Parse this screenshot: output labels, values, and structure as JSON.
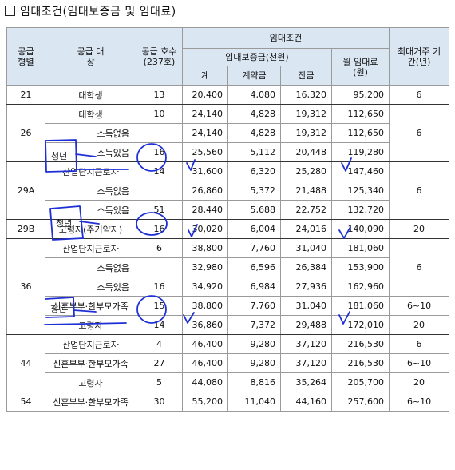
{
  "heading": "임대조건(임대보증금 및 임대료)",
  "headers": {
    "type": "공급 형별",
    "target": "공급 대상",
    "units": "공급 호수 (237호)",
    "rent_conditions": "임대조건",
    "deposit_group": "임대보증금(천원)",
    "total": "계",
    "contract": "계약금",
    "balance": "잔금",
    "monthly_rent": "월 임대료 (원)",
    "max_period": "최대거주 기간(년)"
  },
  "annot": {
    "youth": "청년"
  },
  "rows": [
    {
      "type": "21",
      "target": "대학생",
      "units": "13",
      "total": "20,400",
      "contract": "4,080",
      "balance": "16,320",
      "rent": "95,200",
      "period": "6"
    },
    {
      "type": "26",
      "target": "대학생",
      "units": "10",
      "total": "24,140",
      "contract": "4,828",
      "balance": "19,312",
      "rent": "112,650",
      "period": "6"
    },
    {
      "target": "청년",
      "sub": "소득없음",
      "total": "24,140",
      "contract": "4,828",
      "balance": "19,312",
      "rent": "112,650"
    },
    {
      "sub": "소득있음",
      "units": "16",
      "total": "25,560",
      "contract": "5,112",
      "balance": "20,448",
      "rent": "119,280"
    },
    {
      "type": "29A",
      "target": "산업단지근로자",
      "units": "14",
      "total": "31,600",
      "contract": "6,320",
      "balance": "25,280",
      "rent": "147,460",
      "period": "6"
    },
    {
      "target": "청년",
      "sub": "소득없음",
      "total": "26,860",
      "contract": "5,372",
      "balance": "21,488",
      "rent": "125,340"
    },
    {
      "sub": "소득있음",
      "units": "51",
      "total": "28,440",
      "contract": "5,688",
      "balance": "22,752",
      "rent": "132,720"
    },
    {
      "type": "29B",
      "target": "고령자(주거약자)",
      "units": "16",
      "total": "30,020",
      "contract": "6,004",
      "balance": "24,016",
      "rent": "140,090",
      "period": "20"
    },
    {
      "type": "36",
      "target": "산업단지근로자",
      "units": "6",
      "total": "38,800",
      "contract": "7,760",
      "balance": "31,040",
      "rent": "181,060",
      "period": "6"
    },
    {
      "target": "청년",
      "sub": "소득없음",
      "total": "32,980",
      "contract": "6,596",
      "balance": "26,384",
      "rent": "153,900"
    },
    {
      "sub": "소득있음",
      "units": "16",
      "total": "34,920",
      "contract": "6,984",
      "balance": "27,936",
      "rent": "162,960"
    },
    {
      "target": "신혼부부·한부모가족",
      "units": "15",
      "total": "38,800",
      "contract": "7,760",
      "balance": "31,040",
      "rent": "181,060",
      "period": "6~10"
    },
    {
      "target": "고령자",
      "units": "14",
      "total": "36,860",
      "contract": "7,372",
      "balance": "29,488",
      "rent": "172,010",
      "period": "20"
    },
    {
      "type": "44",
      "target": "산업단지근로자",
      "units": "4",
      "total": "46,400",
      "contract": "9,280",
      "balance": "37,120",
      "rent": "216,530",
      "period": "6"
    },
    {
      "target": "신혼부부·한부모가족",
      "units": "27",
      "total": "46,400",
      "contract": "9,280",
      "balance": "37,120",
      "rent": "216,530",
      "period": "6~10"
    },
    {
      "target": "고령자",
      "units": "5",
      "total": "44,080",
      "contract": "8,816",
      "balance": "35,264",
      "rent": "205,700",
      "period": "20"
    },
    {
      "type": "54",
      "target": "신혼부부·한부모가족",
      "units": "30",
      "total": "55,200",
      "contract": "11,040",
      "balance": "44,160",
      "rent": "257,600",
      "period": "6~10"
    }
  ]
}
